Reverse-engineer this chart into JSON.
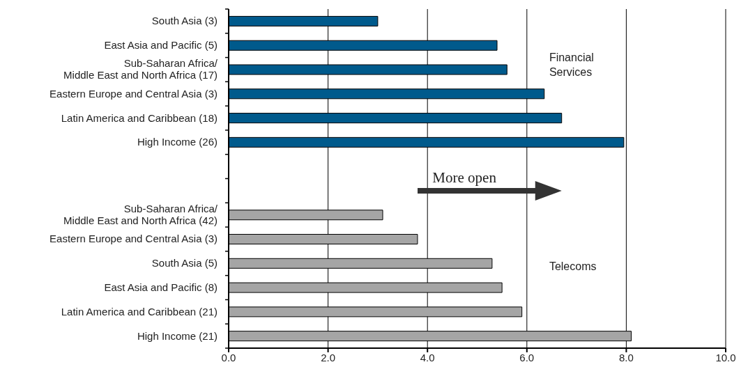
{
  "chart_data": {
    "type": "bar",
    "orientation": "horizontal",
    "categories": [
      "South Asia (3)",
      "East Asia and Pacific (5)",
      "Sub-Saharan Africa/\nMiddle East and North Africa (17)",
      "Eastern Europe and Central Asia (3)",
      "Latin America and Caribbean (18)",
      "High Income (26)",
      null,
      null,
      "Sub-Saharan Africa/\nMiddle East and North Africa (42)",
      "Eastern Europe and Central Asia (3)",
      "South Asia (5)",
      "East Asia and Pacific (8)",
      "Latin America and Caribbean (21)",
      "High Income (21)"
    ],
    "values": [
      3.0,
      5.4,
      5.6,
      6.35,
      6.7,
      7.95,
      null,
      null,
      3.1,
      3.8,
      5.3,
      5.5,
      5.9,
      8.1
    ],
    "colors": [
      "#005a8c",
      "#005a8c",
      "#005a8c",
      "#005a8c",
      "#005a8c",
      "#005a8c",
      null,
      null,
      "#a5a5a5",
      "#a5a5a5",
      "#a5a5a5",
      "#a5a5a5",
      "#a5a5a5",
      "#a5a5a5"
    ],
    "xlim": [
      0,
      10
    ],
    "xticks": [
      {
        "value": 0,
        "label": "0.0"
      },
      {
        "value": 2,
        "label": "2.0"
      },
      {
        "value": 4,
        "label": "4.0"
      },
      {
        "value": 6,
        "label": "6.0"
      },
      {
        "value": 8,
        "label": "8.0"
      },
      {
        "value": 10,
        "label": "10.0"
      }
    ],
    "grid": "x",
    "annotations": [
      "Financial Services",
      "More open",
      "Telecoms"
    ]
  }
}
